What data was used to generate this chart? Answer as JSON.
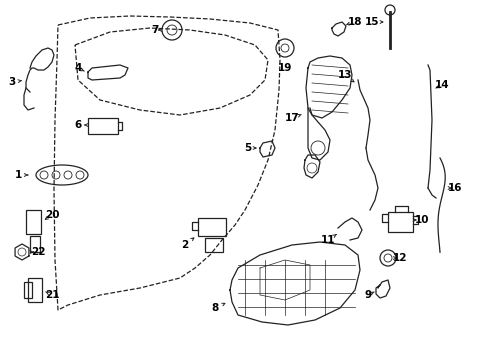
{
  "bg_color": "#ffffff",
  "line_color": "#222222",
  "text_color": "#000000",
  "fig_width": 4.89,
  "fig_height": 3.6,
  "dpi": 100
}
